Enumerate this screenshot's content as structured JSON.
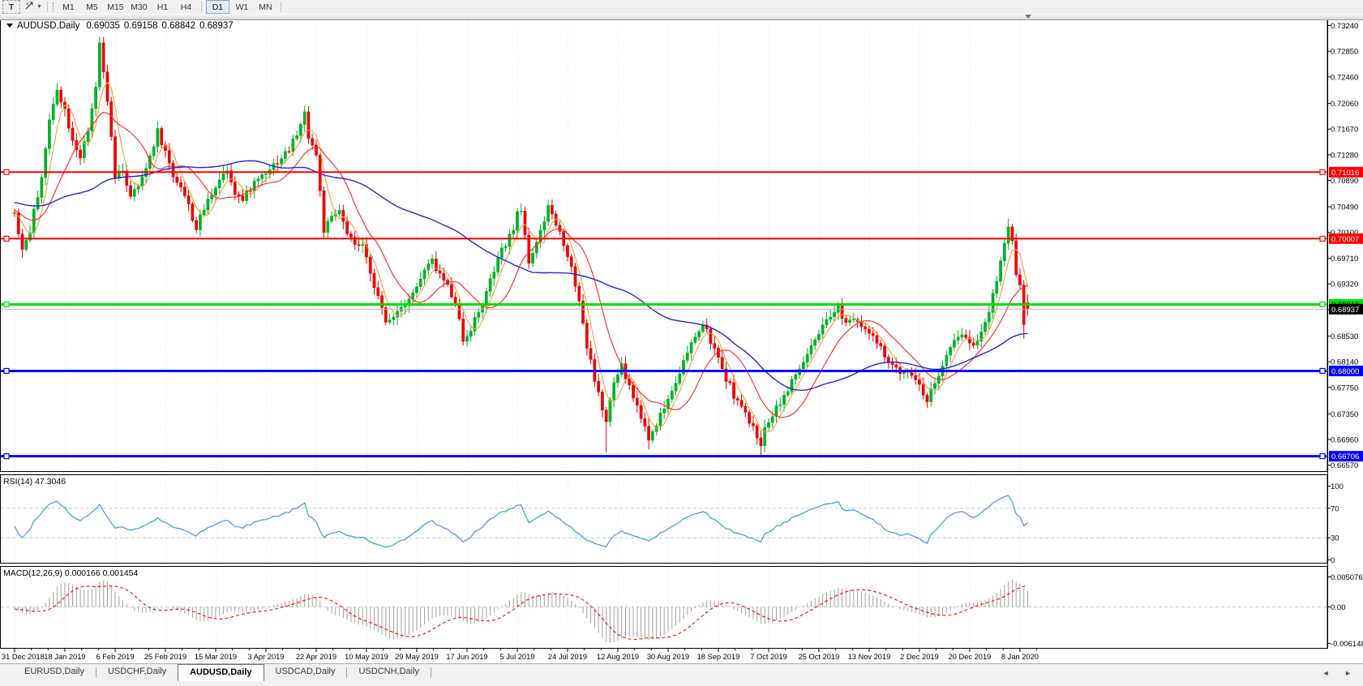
{
  "toolbar": {
    "text_tool_label": "T",
    "style_tool_icon": "chart-style-arrows-icon",
    "style_caret": "▼",
    "timeframes": [
      {
        "label": "M1",
        "active": false
      },
      {
        "label": "M5",
        "active": false
      },
      {
        "label": "M15",
        "active": false
      },
      {
        "label": "M30",
        "active": false
      },
      {
        "label": "H1",
        "active": false
      },
      {
        "label": "H4",
        "active": false
      },
      {
        "label": "D1",
        "active": true
      },
      {
        "label": "W1",
        "active": false
      },
      {
        "label": "MN",
        "active": false
      }
    ]
  },
  "chart": {
    "symbol_period": "AUDUSD,Daily",
    "open": "0.69035",
    "high": "0.69158",
    "low": "0.68842",
    "close": "0.68937"
  },
  "chart_data": {
    "type": "candlestick",
    "symbol": "AUDUSD",
    "timeframe": "Daily",
    "total_bars": 263,
    "last_bar": {
      "open": 0.69035,
      "high": 0.69158,
      "low": 0.68842,
      "close": 0.68937
    },
    "x_labels": [
      "31 Dec 2018",
      "18 Jan 2019",
      "6 Feb 2019",
      "25 Feb 2019",
      "15 Mar 2019",
      "3 Apr 2019",
      "22 Apr 2019",
      "10 May 2019",
      "29 May 2019",
      "17 Jun 2019",
      "5 Jul 2019",
      "24 Jul 2019",
      "12 Aug 2019",
      "30 Aug 2019",
      "18 Sep 2019",
      "7 Oct 2019",
      "25 Oct 2019",
      "13 Nov 2019",
      "2 Dec 2019",
      "20 Dec 2019",
      "8 Jan 2020"
    ],
    "bars_per_label": 13,
    "y_axis": {
      "max": 0.7332,
      "min": 0.6648,
      "ticks": [
        "0.73240",
        "0.72850",
        "0.72460",
        "0.72060",
        "0.71670",
        "0.71280",
        "0.70890",
        "0.70490",
        "0.70100",
        "0.69710",
        "0.69320",
        "0.68930",
        "0.68530",
        "0.68140",
        "0.67750",
        "0.67350",
        "0.66960",
        "0.66570"
      ]
    },
    "price_path_anchors": [
      [
        0,
        0.704
      ],
      [
        2,
        0.6984
      ],
      [
        4,
        0.7014
      ],
      [
        7,
        0.7095
      ],
      [
        9,
        0.7178
      ],
      [
        11,
        0.723
      ],
      [
        13,
        0.7196
      ],
      [
        15,
        0.7152
      ],
      [
        17,
        0.7126
      ],
      [
        19,
        0.716
      ],
      [
        21,
        0.723
      ],
      [
        22,
        0.7292
      ],
      [
        23,
        0.7252
      ],
      [
        24,
        0.721
      ],
      [
        26,
        0.7092
      ],
      [
        28,
        0.7106
      ],
      [
        30,
        0.7062
      ],
      [
        33,
        0.709
      ],
      [
        35,
        0.7126
      ],
      [
        37,
        0.7164
      ],
      [
        39,
        0.7132
      ],
      [
        41,
        0.7096
      ],
      [
        43,
        0.7082
      ],
      [
        45,
        0.705
      ],
      [
        47,
        0.7016
      ],
      [
        49,
        0.7046
      ],
      [
        52,
        0.7082
      ],
      [
        55,
        0.7108
      ],
      [
        57,
        0.7072
      ],
      [
        59,
        0.7058
      ],
      [
        61,
        0.7078
      ],
      [
        63,
        0.7092
      ],
      [
        65,
        0.7104
      ],
      [
        68,
        0.7118
      ],
      [
        71,
        0.7136
      ],
      [
        74,
        0.7172
      ],
      [
        75,
        0.719
      ],
      [
        76,
        0.7158
      ],
      [
        78,
        0.7128
      ],
      [
        80,
        0.7014
      ],
      [
        82,
        0.703
      ],
      [
        84,
        0.7044
      ],
      [
        86,
        0.7004
      ],
      [
        88,
        0.6992
      ],
      [
        90,
        0.6986
      ],
      [
        92,
        0.6952
      ],
      [
        94,
        0.6912
      ],
      [
        96,
        0.6872
      ],
      [
        98,
        0.6886
      ],
      [
        100,
        0.6898
      ],
      [
        102,
        0.6912
      ],
      [
        104,
        0.6926
      ],
      [
        106,
        0.6952
      ],
      [
        108,
        0.6966
      ],
      [
        110,
        0.6946
      ],
      [
        112,
        0.6928
      ],
      [
        114,
        0.6906
      ],
      [
        116,
        0.6846
      ],
      [
        118,
        0.6866
      ],
      [
        120,
        0.6888
      ],
      [
        122,
        0.6918
      ],
      [
        124,
        0.6952
      ],
      [
        126,
        0.6982
      ],
      [
        128,
        0.7002
      ],
      [
        130,
        0.7036
      ],
      [
        131,
        0.7046
      ],
      [
        133,
        0.6966
      ],
      [
        135,
        0.6996
      ],
      [
        137,
        0.7022
      ],
      [
        138,
        0.7052
      ],
      [
        140,
        0.7022
      ],
      [
        142,
        0.6996
      ],
      [
        144,
        0.6956
      ],
      [
        146,
        0.6908
      ],
      [
        148,
        0.6838
      ],
      [
        150,
        0.6788
      ],
      [
        152,
        0.6742
      ],
      [
        153,
        0.6722
      ],
      [
        155,
        0.6782
      ],
      [
        157,
        0.6806
      ],
      [
        159,
        0.6776
      ],
      [
        161,
        0.6746
      ],
      [
        163,
        0.6716
      ],
      [
        164,
        0.6696
      ],
      [
        166,
        0.6722
      ],
      [
        168,
        0.6744
      ],
      [
        170,
        0.6772
      ],
      [
        172,
        0.68
      ],
      [
        174,
        0.6826
      ],
      [
        176,
        0.6852
      ],
      [
        178,
        0.687
      ],
      [
        180,
        0.6846
      ],
      [
        182,
        0.6816
      ],
      [
        184,
        0.679
      ],
      [
        186,
        0.6764
      ],
      [
        188,
        0.6744
      ],
      [
        190,
        0.6722
      ],
      [
        192,
        0.6702
      ],
      [
        193,
        0.6692
      ],
      [
        195,
        0.6726
      ],
      [
        197,
        0.6746
      ],
      [
        199,
        0.6762
      ],
      [
        201,
        0.6782
      ],
      [
        203,
        0.6804
      ],
      [
        205,
        0.6824
      ],
      [
        207,
        0.6844
      ],
      [
        209,
        0.6864
      ],
      [
        211,
        0.6882
      ],
      [
        213,
        0.6896
      ],
      [
        215,
        0.6874
      ],
      [
        217,
        0.6884
      ],
      [
        219,
        0.6872
      ],
      [
        221,
        0.6856
      ],
      [
        223,
        0.6842
      ],
      [
        225,
        0.6822
      ],
      [
        227,
        0.6806
      ],
      [
        229,
        0.6796
      ],
      [
        231,
        0.6806
      ],
      [
        233,
        0.6788
      ],
      [
        235,
        0.6766
      ],
      [
        236,
        0.6756
      ],
      [
        238,
        0.6784
      ],
      [
        240,
        0.6806
      ],
      [
        242,
        0.6832
      ],
      [
        244,
        0.6856
      ],
      [
        246,
        0.6852
      ],
      [
        248,
        0.6838
      ],
      [
        250,
        0.6862
      ],
      [
        252,
        0.6892
      ],
      [
        254,
        0.694
      ],
      [
        255,
        0.6966
      ],
      [
        256,
        0.6994
      ],
      [
        257,
        0.7022
      ],
      [
        258,
        0.6996
      ],
      [
        259,
        0.695
      ],
      [
        260,
        0.693
      ],
      [
        261,
        0.6876
      ],
      [
        262,
        0.68937
      ]
    ],
    "wick_highs": [
      [
        11,
        0.7237
      ],
      [
        22,
        0.7297
      ],
      [
        257,
        0.7031
      ]
    ],
    "wick_lows": [
      [
        2,
        0.6972
      ],
      [
        153,
        0.6676
      ],
      [
        164,
        0.6681
      ],
      [
        193,
        0.6672
      ],
      [
        261,
        0.6849
      ]
    ],
    "candle_colors": {
      "up": "#00B226",
      "down": "#EE0000"
    },
    "moving_averages": [
      {
        "period": 5,
        "color": "#E8A33D"
      },
      {
        "period": 13,
        "color": "#FF2020"
      },
      {
        "period": 55,
        "color": "#2525CF"
      }
    ],
    "hlines": [
      {
        "price": 0.71016,
        "label": "0.71016",
        "color": "#FF0000",
        "label_bg": "#FF0000",
        "label_fg": "#FFFFFF",
        "width": 2
      },
      {
        "price": 0.70007,
        "label": "0.70007",
        "color": "#FF0000",
        "label_bg": "#FF0000",
        "label_fg": "#FFFFFF",
        "width": 2
      },
      {
        "price": 0.6901,
        "label": "0.69010",
        "color": "#00DE00",
        "label_bg": "#00DE00",
        "label_fg": "#000000",
        "width": 3
      },
      {
        "price": 0.68,
        "label": "0.68000",
        "color": "#0000FF",
        "label_bg": "#0000FF",
        "label_fg": "#FFFFFF",
        "width": 3
      },
      {
        "price": 0.66706,
        "label": "0.66706",
        "color": "#0000FF",
        "label_bg": "#0000FF",
        "label_fg": "#FFFFFF",
        "width": 3
      }
    ],
    "bid_line": {
      "price": 0.68937,
      "label": "0.68937",
      "color": "#B4B4B4",
      "label_bg": "#000000",
      "label_fg": "#FFFFFF",
      "width": 1
    },
    "rsi": {
      "label": "RSI(14) 47.3046",
      "period": 14,
      "value": 47.3046,
      "color": "#3D96E8",
      "axis_labels": [
        "100",
        "70",
        "30",
        "0"
      ],
      "axis_values": [
        100,
        70,
        30,
        0
      ],
      "dashed_levels": [
        70,
        30
      ]
    },
    "macd": {
      "label": "MACD(12,26,9) 0.000166 0.001454",
      "fast": 12,
      "slow": 26,
      "signal": 9,
      "main_value": "0.000166",
      "signal_value": "0.001454",
      "hist_color": "#A0A0A0",
      "signal_color": "#FF0000",
      "axis_labels": [
        "0.005076",
        "0.00",
        "-0.006148"
      ],
      "axis_values": [
        0.005076,
        0,
        -0.006148
      ]
    }
  },
  "tabs": {
    "items": [
      {
        "label": "EURUSD,Daily",
        "active": false
      },
      {
        "label": "USDCHF,Daily",
        "active": false
      },
      {
        "label": "AUDUSD,Daily",
        "active": true
      },
      {
        "label": "USDCAD,Daily",
        "active": false
      },
      {
        "label": "USDCNH,Daily",
        "active": false
      }
    ],
    "scroll_left": "◄",
    "scroll_right": "►"
  }
}
